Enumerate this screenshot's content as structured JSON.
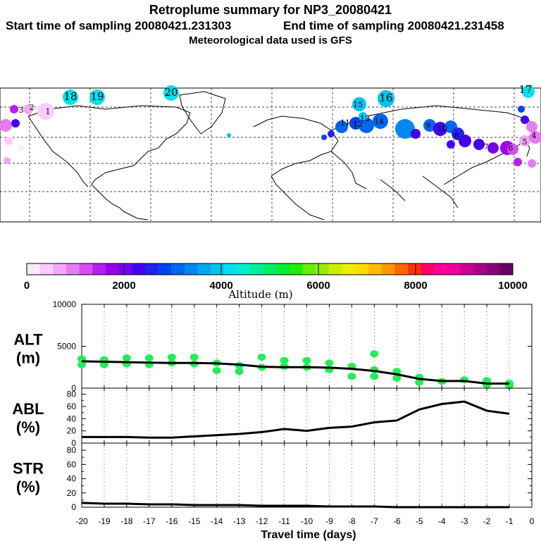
{
  "header": {
    "title": "Retroplume summary for NP3_20080421",
    "line2_start": "Start time of sampling 20080421.231303",
    "line2_end": "End time of sampling 20080421.231458",
    "line3": "Meteorological data used is GFS"
  },
  "colorbar": {
    "tick_labels": [
      "0",
      "2000",
      "4000",
      "6000",
      "8000",
      "10000"
    ],
    "label": "Altitude (m)",
    "colors": [
      "#ffe8ff",
      "#ffccff",
      "#f3a8f7",
      "#e77cf2",
      "#d64ef0",
      "#b81ef0",
      "#9900ee",
      "#7700ee",
      "#4400ee",
      "#2222ee",
      "#0044ee",
      "#0066ee",
      "#0088ee",
      "#00a6ee",
      "#00c4ee",
      "#00e0ee",
      "#00eecc",
      "#00ee99",
      "#00ee66",
      "#00ee33",
      "#22ee00",
      "#66ee00",
      "#99ee00",
      "#ccee00",
      "#eeee00",
      "#ffdd00",
      "#ffbb00",
      "#ff9900",
      "#ff6600",
      "#ff3300",
      "#ff0066",
      "#ff0099",
      "#ee0099",
      "#cc0099",
      "#aa0088",
      "#880077",
      "#660066"
    ]
  },
  "map": {
    "labels": [
      {
        "text": "18",
        "color": "#00e0ee"
      },
      {
        "text": "19",
        "color": "#00e0ee"
      },
      {
        "text": "20",
        "color": "#00e0ee"
      },
      {
        "text": "16",
        "color": "#00c4ee"
      },
      {
        "text": "17",
        "color": "#00e0ee"
      },
      {
        "text": "15",
        "color": "#0088ee"
      },
      {
        "text": "14",
        "color": "#0066ee"
      },
      {
        "text": "13",
        "color": "#0044ee"
      },
      {
        "text": "12",
        "color": "#2222ee"
      },
      {
        "text": "11",
        "color": "#4400ee"
      },
      {
        "text": "10",
        "color": "#2222ee"
      },
      {
        "text": "9",
        "color": "#0066ee"
      },
      {
        "text": "8",
        "color": "#4400ee"
      },
      {
        "text": "7",
        "color": "#9900ee"
      },
      {
        "text": "6",
        "color": "#d64ef0"
      },
      {
        "text": "5",
        "color": "#f3a8f7"
      },
      {
        "text": "4",
        "color": "#e77cf2"
      },
      {
        "text": "3",
        "color": "#b81ef0"
      },
      {
        "text": "2",
        "color": "#b81ef0"
      },
      {
        "text": "1",
        "color": "#ffccff"
      }
    ]
  },
  "chart_data": [
    {
      "type": "scatter",
      "panel_label": "ALT",
      "panel_unit": "(m)",
      "x": [
        -20,
        -19,
        -18,
        -17,
        -16,
        -15,
        -14,
        -13,
        -12,
        -11,
        -10,
        -9,
        -8,
        -7,
        -6,
        -5,
        -4,
        -3,
        -2,
        -1
      ],
      "values": [
        3200,
        3150,
        3100,
        3050,
        3000,
        3000,
        2950,
        2800,
        2550,
        2500,
        2500,
        2450,
        2300,
        2050,
        1650,
        1100,
        850,
        850,
        550,
        550
      ],
      "scatter_points": [
        {
          "x": -20,
          "y": 3500
        },
        {
          "x": -20,
          "y": 2800
        },
        {
          "x": -19,
          "y": 3400
        },
        {
          "x": -19,
          "y": 2800
        },
        {
          "x": -18,
          "y": 3600
        },
        {
          "x": -18,
          "y": 2900
        },
        {
          "x": -17,
          "y": 3600
        },
        {
          "x": -17,
          "y": 2800
        },
        {
          "x": -16,
          "y": 3700
        },
        {
          "x": -16,
          "y": 3000
        },
        {
          "x": -15,
          "y": 3700
        },
        {
          "x": -15,
          "y": 2900
        },
        {
          "x": -14,
          "y": 3000
        },
        {
          "x": -14,
          "y": 2100
        },
        {
          "x": -13,
          "y": 2700
        },
        {
          "x": -13,
          "y": 2000
        },
        {
          "x": -12,
          "y": 3700
        },
        {
          "x": -12,
          "y": 2500
        },
        {
          "x": -11,
          "y": 3300
        },
        {
          "x": -11,
          "y": 2600
        },
        {
          "x": -10,
          "y": 3300
        },
        {
          "x": -10,
          "y": 2500
        },
        {
          "x": -9,
          "y": 3000
        },
        {
          "x": -9,
          "y": 2200
        },
        {
          "x": -8,
          "y": 2600
        },
        {
          "x": -8,
          "y": 1400
        },
        {
          "x": -7,
          "y": 4100
        },
        {
          "x": -7,
          "y": 2200
        },
        {
          "x": -7,
          "y": 1400
        },
        {
          "x": -6,
          "y": 2000
        },
        {
          "x": -6,
          "y": 1200
        },
        {
          "x": -5,
          "y": 1300
        },
        {
          "x": -5,
          "y": 700
        },
        {
          "x": -4,
          "y": 800
        },
        {
          "x": -3,
          "y": 1000
        },
        {
          "x": -2,
          "y": 900
        },
        {
          "x": -2,
          "y": 400
        },
        {
          "x": -1,
          "y": 600
        },
        {
          "x": -1,
          "y": 300
        }
      ],
      "point_color": "#22ee55",
      "ylim": [
        0,
        10000
      ],
      "yticks": [
        "0",
        "5000",
        "10000"
      ]
    },
    {
      "type": "line",
      "panel_label": "ABL",
      "panel_unit": "(%)",
      "x": [
        -20,
        -19,
        -18,
        -17,
        -16,
        -15,
        -14,
        -13,
        -12,
        -11,
        -10,
        -9,
        -8,
        -7,
        -6,
        -5,
        -4,
        -3,
        -2,
        -1
      ],
      "values": [
        10,
        10,
        10,
        9,
        9,
        11,
        13,
        15,
        18,
        23,
        20,
        25,
        27,
        34,
        37,
        55,
        64,
        68,
        53,
        48
      ],
      "ylim": [
        0,
        90
      ],
      "yticks": [
        "0",
        "20",
        "40",
        "60",
        "80"
      ]
    },
    {
      "type": "line",
      "panel_label": "STR",
      "panel_unit": "(%)",
      "x": [
        -20,
        -19,
        -18,
        -17,
        -16,
        -15,
        -14,
        -13,
        -12,
        -11,
        -10,
        -9,
        -8,
        -7,
        -6,
        -5,
        -4,
        -3,
        -2,
        -1
      ],
      "values": [
        6,
        5,
        5,
        4,
        4,
        3,
        3,
        3,
        2,
        2,
        2,
        1,
        1,
        1,
        0,
        0,
        0,
        0,
        0,
        0
      ],
      "ylim": [
        0,
        90
      ],
      "yticks": [
        "0",
        "20",
        "40",
        "60",
        "80"
      ]
    }
  ],
  "x_axis": {
    "tick_labels": [
      "-20",
      "-19",
      "-18",
      "-17",
      "-16",
      "-15",
      "-14",
      "-13",
      "-12",
      "-11",
      "-10",
      "-9",
      "-8",
      "-7",
      "-6",
      "-5",
      "-4",
      "-3",
      "-2",
      "-1",
      "0"
    ],
    "label": "Travel time (days)"
  }
}
